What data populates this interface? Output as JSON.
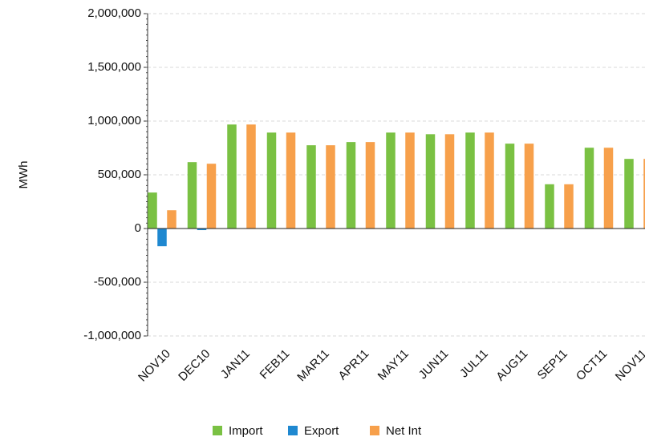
{
  "chart_data": {
    "type": "bar",
    "y_label": "MWh",
    "categories": [
      "NOV10",
      "DEC10",
      "JAN11",
      "FEB11",
      "MAR11",
      "APR11",
      "MAY11",
      "JUN11",
      "JUL11",
      "AUG11",
      "SEP11",
      "OCT11",
      "NOV11"
    ],
    "series": [
      {
        "name": "Import",
        "color": "#7ac143",
        "values": [
          335000,
          618000,
          968000,
          893000,
          775000,
          805000,
          893000,
          878000,
          893000,
          790000,
          412000,
          752000,
          648000
        ]
      },
      {
        "name": "Export",
        "color": "#1f88d0",
        "values": [
          -165000,
          -15000,
          0,
          0,
          0,
          0,
          0,
          0,
          0,
          0,
          0,
          0,
          0
        ]
      },
      {
        "name": "Net Int",
        "color": "#f7a04b",
        "values": [
          170000,
          603000,
          968000,
          893000,
          775000,
          805000,
          893000,
          878000,
          893000,
          790000,
          412000,
          752000,
          648000
        ]
      }
    ],
    "ylim": [
      -1000000,
      2000000
    ],
    "yticks": [
      {
        "value": -1000000,
        "label": "-1,000,000"
      },
      {
        "value": -500000,
        "label": "-500,000"
      },
      0,
      {
        "value": 500000,
        "label": "500,000"
      },
      {
        "value": 1000000,
        "label": "1,000,000"
      },
      {
        "value": 1500000,
        "label": "1,500,000"
      },
      {
        "value": 2000000,
        "label": "2,000,000"
      }
    ],
    "grid": true
  }
}
